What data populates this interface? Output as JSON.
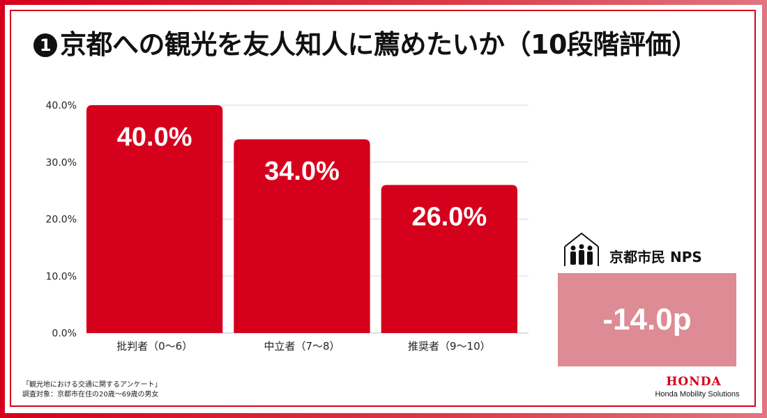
{
  "title": {
    "number_glyph": "1",
    "text": "京都への観光を友人知人に薦めたいか（10段階評価）"
  },
  "chart_data": {
    "type": "bar",
    "categories": [
      "批判者（0〜6）",
      "中立者（7〜8）",
      "推奨者（9〜10）"
    ],
    "values": [
      40.0,
      34.0,
      26.0
    ],
    "value_labels": [
      "40.0%",
      "34.0%",
      "26.0%"
    ],
    "ylim": [
      0,
      40
    ],
    "yticks": [
      0,
      10,
      20,
      30,
      40
    ],
    "ytick_labels": [
      "0.0%",
      "10.0%",
      "20.0%",
      "30.0%",
      "40.0%"
    ],
    "grid": true,
    "bar_color": "#d5001c",
    "grid_color": "#d9d9d9"
  },
  "nps": {
    "icon": "people-house-icon",
    "label": "京都市民 NPS",
    "value": "-14.0p",
    "box_color": "#dd8b94"
  },
  "source": {
    "line1": "「観光地における交通に関するアンケート」",
    "line2": "調査対象：京都市在住の20歳〜69歳の男女"
  },
  "brand": {
    "logo_text": "HONDA",
    "sub_text": "Honda Mobility Solutions",
    "color": "#d5001c"
  }
}
